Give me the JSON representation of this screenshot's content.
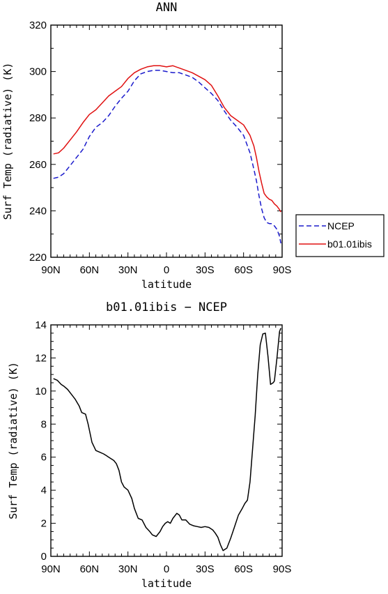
{
  "chart_data": [
    {
      "type": "line",
      "title": "ANN",
      "xlabel": "latitude",
      "ylabel": "Surf Temp (radiative) (K)",
      "xlim": [
        90,
        -90
      ],
      "ylim": [
        220,
        320
      ],
      "x_ticks": [
        90,
        60,
        30,
        0,
        -30,
        -60,
        -90
      ],
      "x_tick_labels": [
        "90N",
        "60N",
        "30N",
        "0",
        "30S",
        "60S",
        "90S"
      ],
      "y_ticks": [
        220,
        240,
        260,
        280,
        300,
        320
      ],
      "y_tick_labels": [
        "220",
        "240",
        "260",
        "280",
        "300",
        "320"
      ],
      "legend": "right",
      "series": [
        {
          "name": "NCEP",
          "color": "#1a1acc",
          "style": "dashed",
          "x": [
            88,
            84,
            80,
            75,
            70,
            65,
            60,
            55,
            50,
            45,
            40,
            35,
            30,
            25,
            20,
            15,
            10,
            5,
            0,
            -5,
            -10,
            -15,
            -20,
            -25,
            -30,
            -35,
            -40,
            -45,
            -50,
            -55,
            -60,
            -65,
            -68,
            -70,
            -72,
            -74,
            -76,
            -78,
            -80,
            -82,
            -84,
            -86,
            -88,
            -89
          ],
          "y": [
            254,
            254.5,
            256,
            259.5,
            263,
            266.5,
            272,
            276,
            278,
            281,
            285,
            288.5,
            291.5,
            296,
            299,
            300,
            300.5,
            300.5,
            300,
            299.5,
            299.5,
            298.5,
            297.5,
            295.5,
            293,
            290.5,
            287.5,
            283,
            279,
            276,
            272.5,
            265,
            258,
            253,
            246.5,
            241,
            237,
            235,
            234.5,
            234.5,
            233.5,
            232,
            229,
            226
          ]
        },
        {
          "name": "b01.01ibis",
          "color": "#e01010",
          "style": "solid",
          "x": [
            88,
            84,
            80,
            75,
            70,
            65,
            60,
            55,
            50,
            45,
            40,
            35,
            30,
            25,
            20,
            15,
            10,
            5,
            0,
            -5,
            -10,
            -15,
            -20,
            -25,
            -30,
            -35,
            -40,
            -45,
            -50,
            -55,
            -60,
            -65,
            -68,
            -70,
            -72,
            -74,
            -76,
            -78,
            -80,
            -82,
            -84,
            -86,
            -88,
            -89
          ],
          "y": [
            264.5,
            265,
            267,
            270.5,
            274,
            278,
            281.5,
            283.5,
            286.5,
            289.5,
            291.5,
            293.5,
            297,
            299.5,
            301,
            302,
            302.5,
            302.5,
            302,
            302.5,
            301.5,
            300.5,
            299.5,
            298,
            296.5,
            294,
            289.5,
            284.5,
            281,
            279,
            277,
            272.5,
            268,
            263,
            257,
            252,
            247.5,
            246,
            245,
            244.5,
            243,
            242,
            240.5,
            239.5
          ]
        }
      ]
    },
    {
      "type": "line",
      "title": "b01.01ibis − NCEP",
      "xlabel": "latitude",
      "ylabel": "Surf Temp (radiative) (K)",
      "xlim": [
        90,
        -90
      ],
      "ylim": [
        0,
        14
      ],
      "x_ticks": [
        90,
        60,
        30,
        0,
        -30,
        -60,
        -90
      ],
      "x_tick_labels": [
        "90N",
        "60N",
        "30N",
        "0",
        "30S",
        "60S",
        "90S"
      ],
      "y_ticks": [
        0,
        2,
        4,
        6,
        8,
        10,
        12,
        14
      ],
      "y_tick_labels": [
        "0",
        "2",
        "4",
        "6",
        "8",
        "10",
        "12",
        "14"
      ],
      "series": [
        {
          "color": "#000000",
          "style": "solid",
          "x": [
            88,
            85,
            82,
            80,
            77,
            74,
            71,
            68,
            66,
            63,
            61,
            58,
            55,
            52,
            49,
            47,
            45,
            43,
            41,
            39,
            37,
            35,
            33,
            30,
            27,
            25,
            22,
            19,
            16,
            13,
            11,
            8,
            5,
            3,
            1,
            -1,
            -3,
            -5,
            -8,
            -10,
            -12,
            -15,
            -18,
            -21,
            -24,
            -27,
            -30,
            -33,
            -36,
            -38,
            -40,
            -42,
            -44,
            -47,
            -50,
            -53,
            -56,
            -59,
            -61,
            -63,
            -65,
            -67,
            -69,
            -71,
            -73,
            -75,
            -77,
            -79,
            -81,
            -83,
            -84,
            -86,
            -88,
            -89
          ],
          "y": [
            10.75,
            10.65,
            10.4,
            10.3,
            10.1,
            9.8,
            9.5,
            9.1,
            8.7,
            8.6,
            8.0,
            6.9,
            6.4,
            6.3,
            6.2,
            6.1,
            6.0,
            5.9,
            5.8,
            5.6,
            5.2,
            4.5,
            4.2,
            4.0,
            3.5,
            2.9,
            2.3,
            2.2,
            1.75,
            1.5,
            1.3,
            1.2,
            1.5,
            1.8,
            2.0,
            2.1,
            2.0,
            2.3,
            2.6,
            2.5,
            2.2,
            2.2,
            1.95,
            1.85,
            1.8,
            1.75,
            1.8,
            1.75,
            1.6,
            1.4,
            1.15,
            0.7,
            0.35,
            0.5,
            1.1,
            1.8,
            2.5,
            2.9,
            3.2,
            3.4,
            4.5,
            6.5,
            8.5,
            11.0,
            12.8,
            13.45,
            13.5,
            12.1,
            10.4,
            10.5,
            10.6,
            12.0,
            13.6,
            13.8
          ]
        }
      ]
    }
  ]
}
